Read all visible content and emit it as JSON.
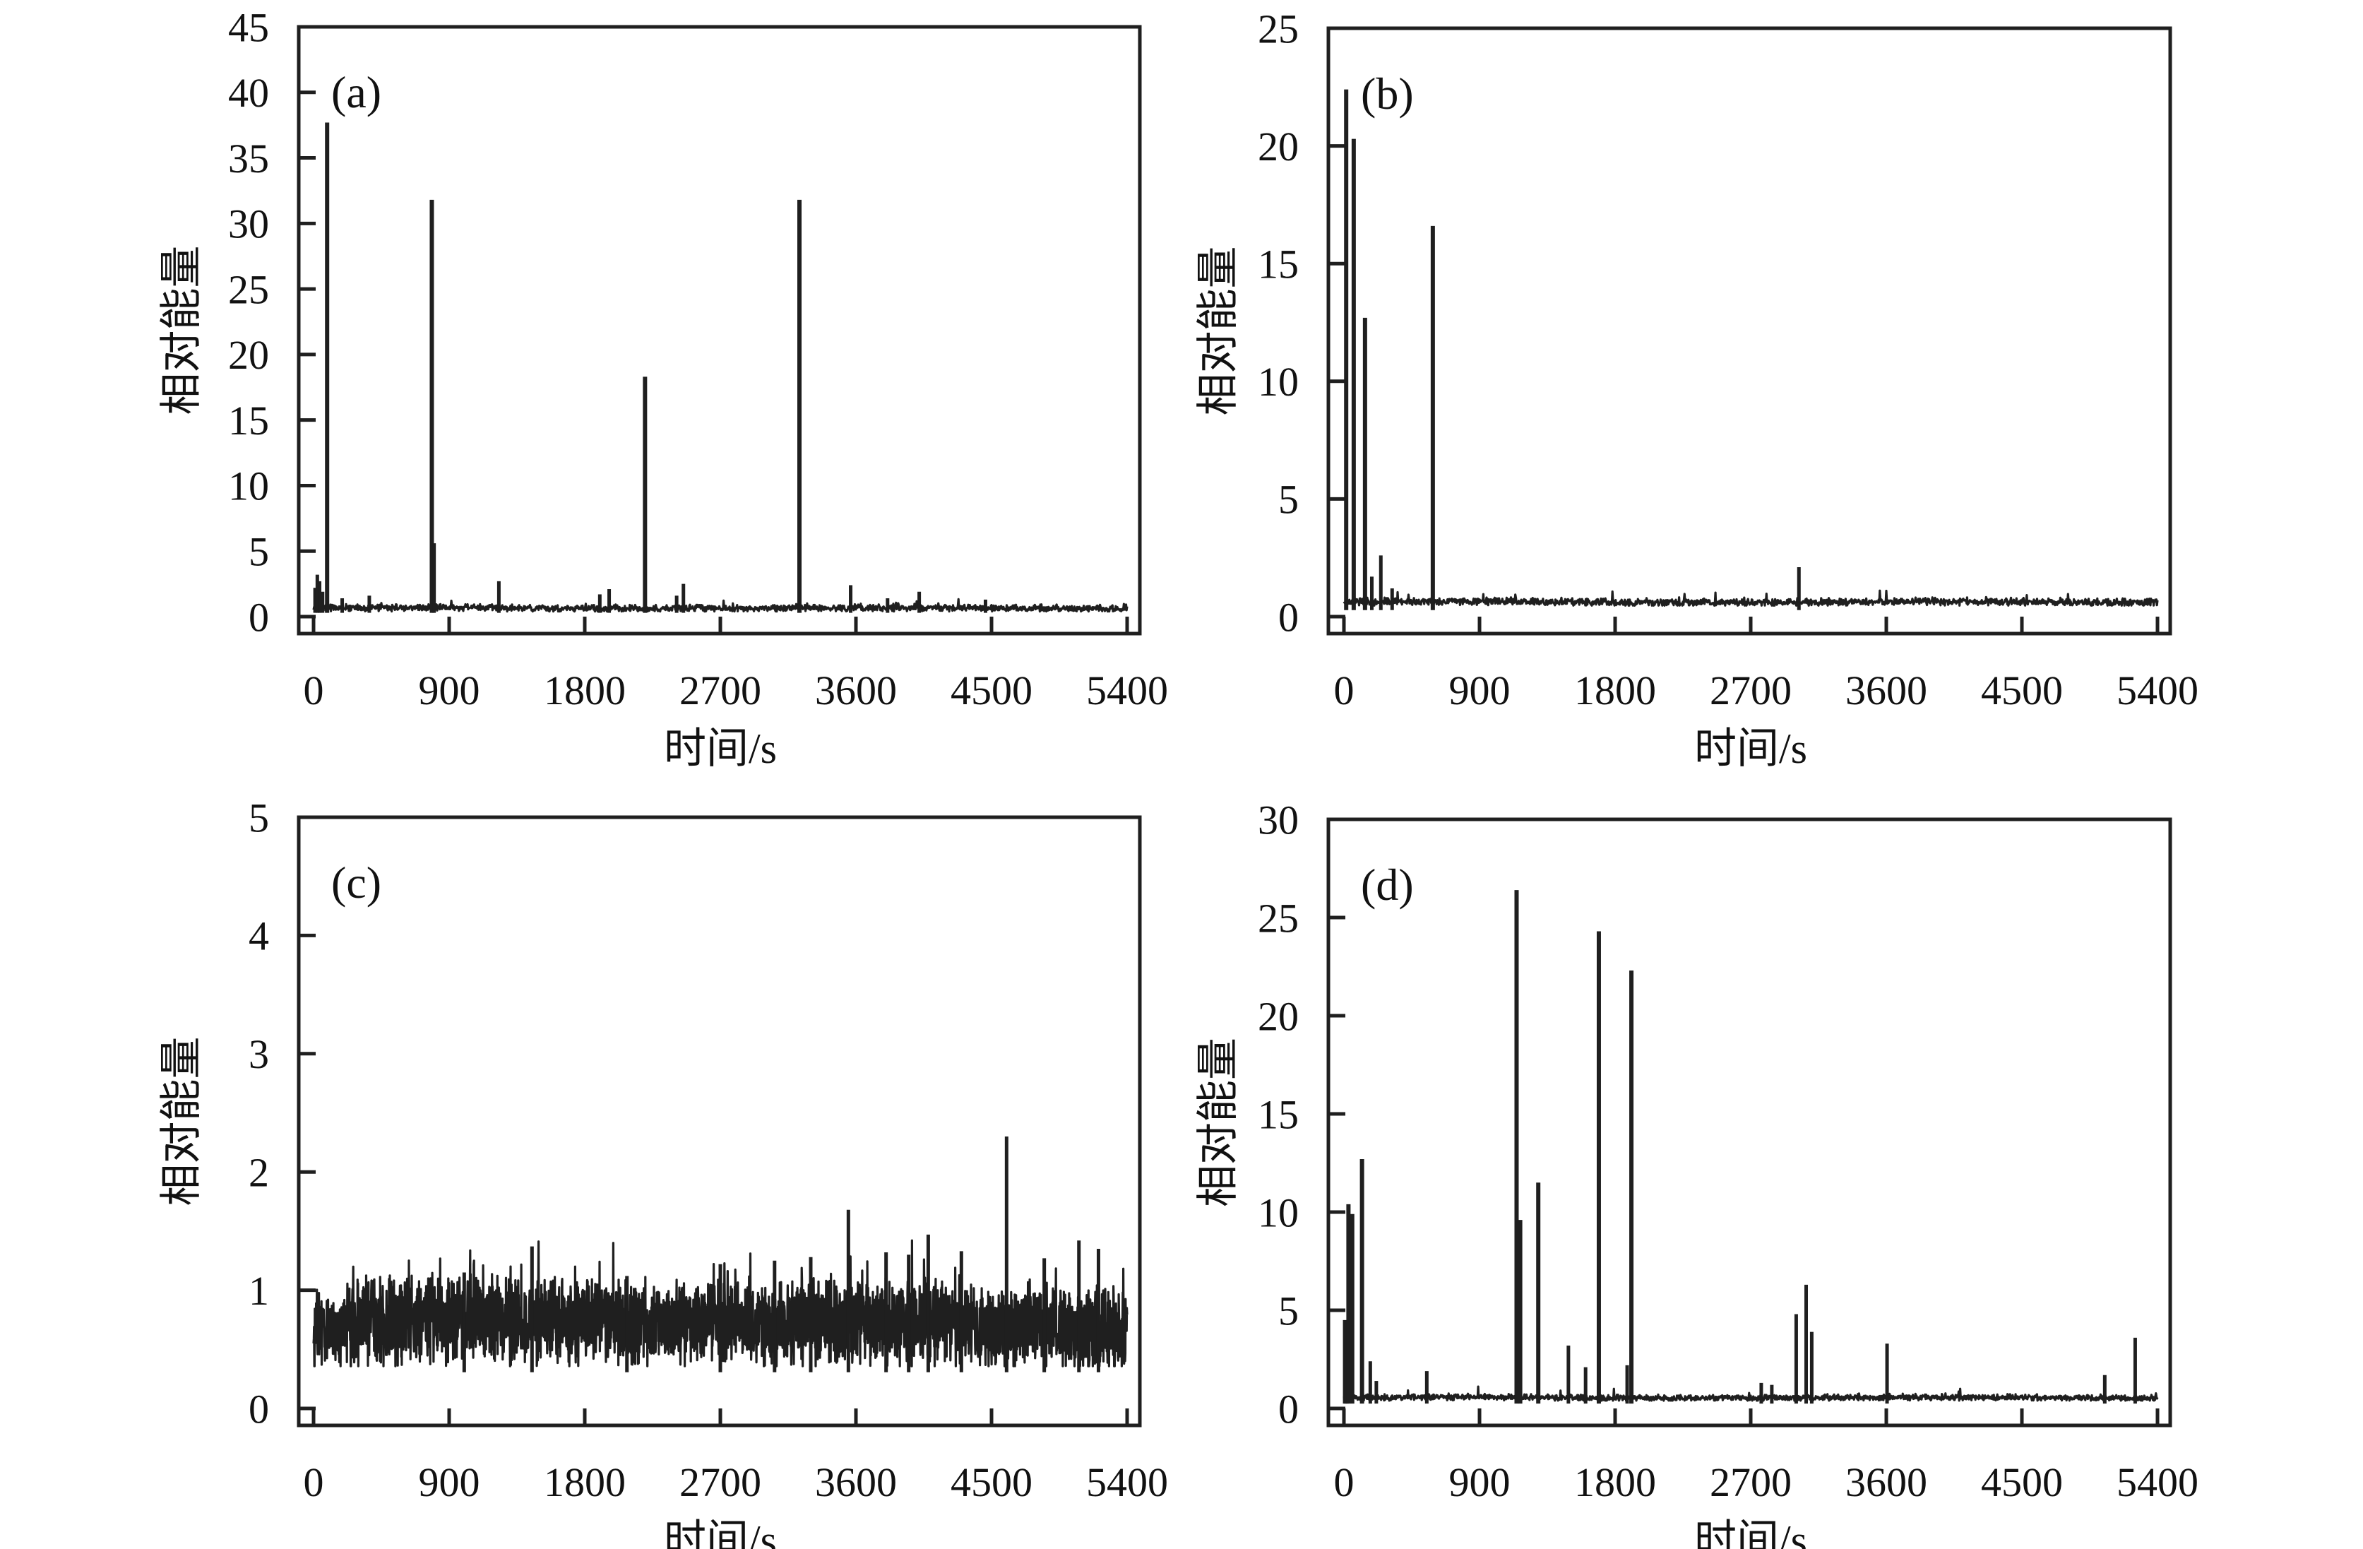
{
  "figure": {
    "background": "#ffffff",
    "line_color": "#1f1f1f",
    "text_color": "#111111",
    "description": "Four-panel relative acoustic energy vs time plots"
  },
  "chart_data": [
    {
      "type": "line",
      "panel_label": "(a)",
      "xlabel": "时间/s",
      "ylabel": "相对能量",
      "xlim": [
        0,
        5400
      ],
      "ylim": [
        0,
        45
      ],
      "xticks": [
        0,
        900,
        1800,
        2700,
        3600,
        4500,
        5400
      ],
      "yticks": [
        0,
        5,
        10,
        15,
        20,
        25,
        30,
        35,
        40,
        45
      ],
      "grid": false,
      "legend": null,
      "baseline": {
        "mean": 0.65,
        "noise_amp": 0.22,
        "blip_rate": 0.02,
        "blip_extra": 0.6
      },
      "spikes": [
        [
          10,
          2.2
        ],
        [
          25,
          3.2
        ],
        [
          40,
          2.7
        ],
        [
          60,
          1.9
        ],
        [
          90,
          37.7
        ],
        [
          190,
          1.4
        ],
        [
          370,
          1.6
        ],
        [
          785,
          31.8
        ],
        [
          800,
          5.6
        ],
        [
          1230,
          2.7
        ],
        [
          1900,
          1.7
        ],
        [
          1962,
          2.1
        ],
        [
          2200,
          18.3
        ],
        [
          2410,
          1.6
        ],
        [
          2455,
          2.5
        ],
        [
          3225,
          31.8
        ],
        [
          3565,
          2.4
        ],
        [
          3810,
          1.4
        ],
        [
          4020,
          1.9
        ],
        [
          4460,
          1.3
        ]
      ]
    },
    {
      "type": "line",
      "panel_label": "(b)",
      "xlabel": "时间/s",
      "ylabel": "相对能量",
      "xlim": [
        0,
        5400
      ],
      "ylim": [
        0,
        25
      ],
      "xticks": [
        0,
        900,
        1800,
        2700,
        3600,
        4500,
        5400
      ],
      "yticks": [
        0,
        5,
        10,
        15,
        20,
        25
      ],
      "grid": false,
      "legend": null,
      "baseline": {
        "mean": 0.62,
        "noise_amp": 0.13,
        "blip_rate": 0.015,
        "blip_extra": 0.45
      },
      "spikes": [
        [
          15,
          22.4
        ],
        [
          65,
          20.3
        ],
        [
          140,
          12.7
        ],
        [
          185,
          1.7
        ],
        [
          245,
          2.6
        ],
        [
          320,
          1.2
        ],
        [
          590,
          16.6
        ],
        [
          3020,
          2.1
        ]
      ]
    },
    {
      "type": "line",
      "panel_label": "(c)",
      "xlabel": "时间/s",
      "ylabel": "相对能量",
      "xlim": [
        0,
        5400
      ],
      "ylim": [
        0,
        5
      ],
      "xticks": [
        0,
        900,
        1800,
        2700,
        3600,
        4500,
        5400
      ],
      "yticks": [
        0,
        1,
        2,
        3,
        4,
        5
      ],
      "grid": false,
      "legend": null,
      "baseline": {
        "mean": 0.68,
        "noise_amp": 0.28,
        "blip_rate": 0.06,
        "blip_extra": 0.4
      },
      "spikes": [
        [
          1000,
          1.15
        ],
        [
          1450,
          1.37
        ],
        [
          2080,
          1.12
        ],
        [
          2700,
          1.22
        ],
        [
          3060,
          1.25
        ],
        [
          3300,
          1.28
        ],
        [
          3550,
          1.68
        ],
        [
          3800,
          1.32
        ],
        [
          3950,
          1.3
        ],
        [
          4080,
          1.47
        ],
        [
          4300,
          1.33
        ],
        [
          4600,
          2.3
        ],
        [
          4850,
          1.27
        ],
        [
          5080,
          1.42
        ],
        [
          5210,
          1.35
        ]
      ]
    },
    {
      "type": "line",
      "panel_label": "(d)",
      "xlabel": "时间/s",
      "ylabel": "相对能量",
      "xlim": [
        0,
        5400
      ],
      "ylim": [
        0,
        30
      ],
      "xticks": [
        0,
        900,
        1800,
        2700,
        3600,
        4500,
        5400
      ],
      "yticks": [
        0,
        5,
        10,
        15,
        20,
        25,
        30
      ],
      "grid": false,
      "legend": null,
      "baseline": {
        "mean": 0.55,
        "noise_amp": 0.13,
        "blip_rate": 0.012,
        "blip_extra": 0.5
      },
      "spikes": [
        [
          5,
          4.5
        ],
        [
          12,
          3.4
        ],
        [
          22,
          2.8
        ],
        [
          30,
          10.4
        ],
        [
          55,
          9.9
        ],
        [
          120,
          12.7
        ],
        [
          175,
          2.4
        ],
        [
          215,
          1.4
        ],
        [
          550,
          1.9
        ],
        [
          1146,
          26.4
        ],
        [
          1170,
          9.6
        ],
        [
          1290,
          11.5
        ],
        [
          1490,
          3.2
        ],
        [
          1604,
          2.1
        ],
        [
          1692,
          24.3
        ],
        [
          1880,
          2.2
        ],
        [
          1908,
          22.3
        ],
        [
          2770,
          1.3
        ],
        [
          2840,
          1.2
        ],
        [
          3002,
          4.8
        ],
        [
          3068,
          6.3
        ],
        [
          3105,
          3.9
        ],
        [
          3605,
          3.3
        ],
        [
          5050,
          1.7
        ],
        [
          5252,
          3.6
        ]
      ]
    }
  ]
}
